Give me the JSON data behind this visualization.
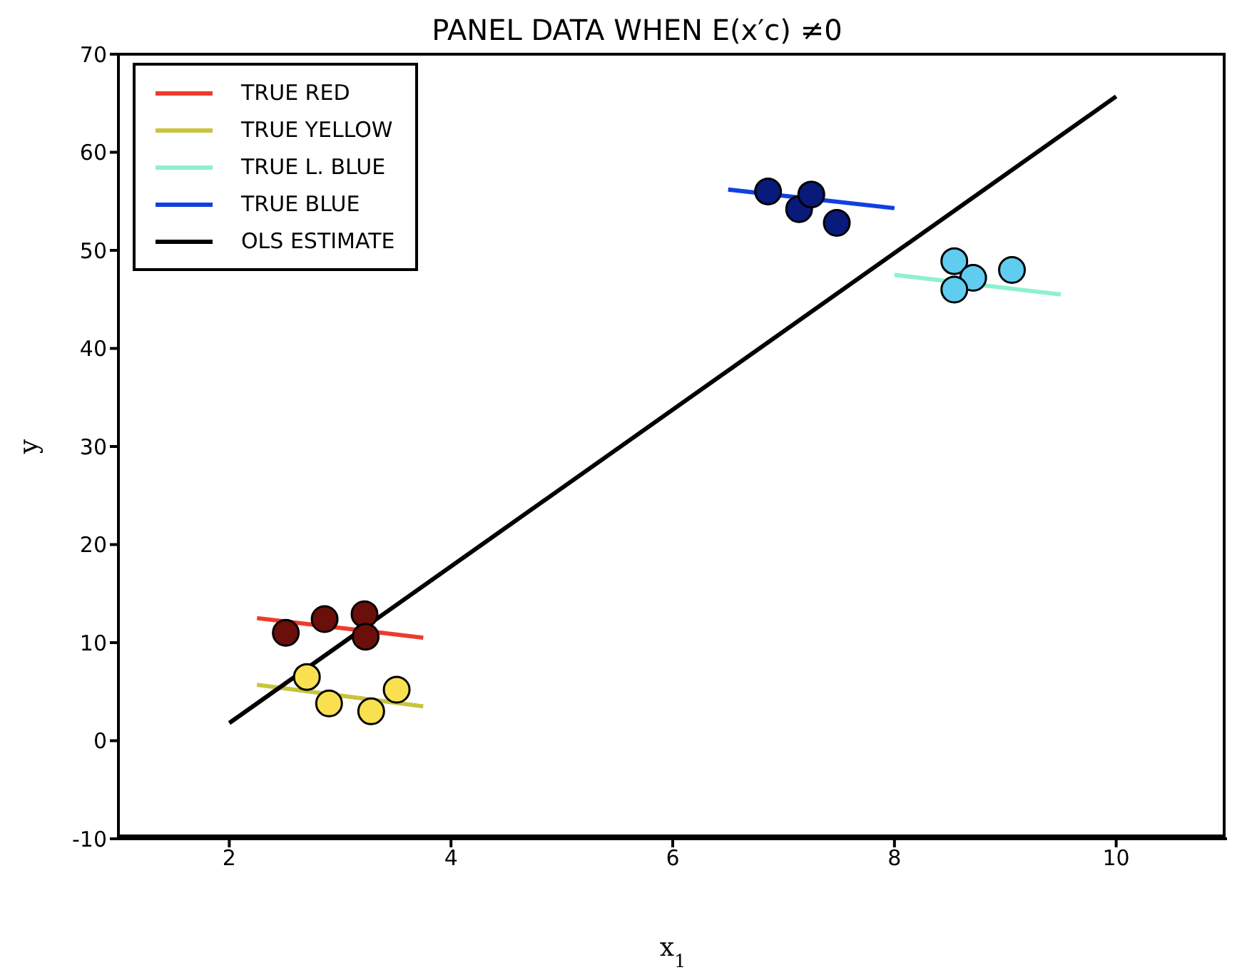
{
  "chart_data": {
    "type": "scatter",
    "title": "PANEL DATA WHEN E(x′c) ≠0",
    "xlabel": "x$_{1}$",
    "ylabel": "y",
    "xlim": [
      1,
      11
    ],
    "xticks": [
      2,
      4,
      6,
      8,
      10
    ],
    "ylim": [
      -10,
      70
    ],
    "yticks": [
      -10,
      0,
      10,
      20,
      30,
      40,
      50,
      60,
      70
    ],
    "grid": false,
    "legend": "top left",
    "marker": "circle",
    "series": [
      {
        "color": "#6b0f0a",
        "x": [
          2.51,
          2.86,
          3.22,
          3.23
        ],
        "values": [
          11.0,
          12.4,
          12.9,
          10.6
        ]
      },
      {
        "color": "#f8e050",
        "x": [
          2.7,
          2.9,
          3.28,
          3.51
        ],
        "values": [
          6.5,
          3.8,
          3.0,
          5.2
        ]
      },
      {
        "color": "#0a1a7a",
        "x": [
          6.86,
          7.14,
          7.25,
          7.48
        ],
        "values": [
          56.0,
          54.2,
          55.7,
          52.8
        ]
      },
      {
        "color": "#60cdf0",
        "x": [
          8.54,
          8.71,
          8.54,
          9.06
        ],
        "values": [
          48.9,
          47.2,
          46.0,
          48.0
        ]
      },
      {
        "type": "line",
        "marker": "none",
        "name": "TRUE RED",
        "color": "#ee3b2c",
        "x": [
          2.25,
          3.75
        ],
        "values": [
          12.5,
          10.5
        ]
      },
      {
        "type": "line",
        "marker": "none",
        "name": "TRUE YELLOW",
        "color": "#c8c43c",
        "x": [
          2.25,
          3.75
        ],
        "values": [
          5.7,
          3.5
        ]
      },
      {
        "type": "line",
        "marker": "none",
        "name": "TRUE L. BLUE",
        "color": "#8ef0d0",
        "x": [
          8,
          9.5
        ],
        "values": [
          47.5,
          45.5
        ]
      },
      {
        "type": "line",
        "marker": "none",
        "name": "TRUE BLUE",
        "color": "#1040e0",
        "x": [
          6.5,
          8
        ],
        "values": [
          56.2,
          54.3
        ]
      },
      {
        "type": "line",
        "marker": "none",
        "name": "OLS ESTIMATE",
        "color": "#000000",
        "x": [
          2,
          10
        ],
        "values": [
          1.8,
          65.7
        ]
      }
    ]
  }
}
